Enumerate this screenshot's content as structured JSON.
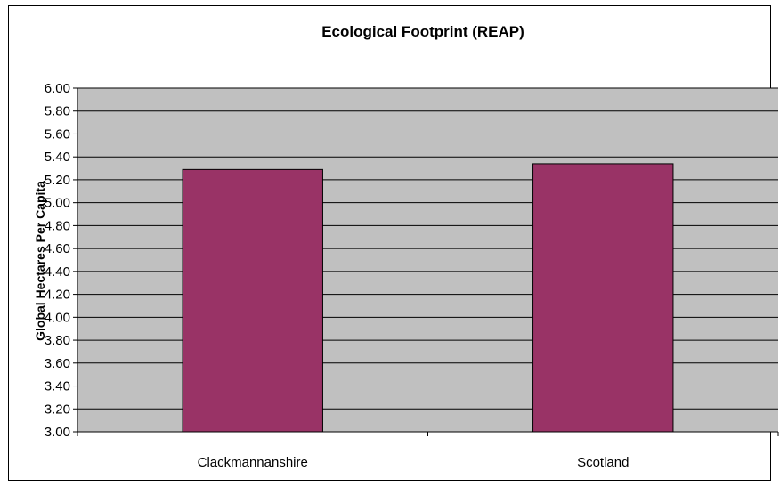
{
  "chart_data": {
    "type": "bar",
    "title": "Ecological Footprint (REAP)",
    "ylabel": "Global Hectares Per Capita",
    "xlabel": "",
    "categories": [
      "Clackmannanshire",
      "Scotland"
    ],
    "values": [
      5.29,
      5.34
    ],
    "ylim": [
      3.0,
      6.0
    ],
    "ytick_step": 0.2,
    "grid": true,
    "legend": "none",
    "colors": {
      "bar": "#993366",
      "plot_background": "#c0c0c0",
      "gridline": "#000000"
    }
  }
}
